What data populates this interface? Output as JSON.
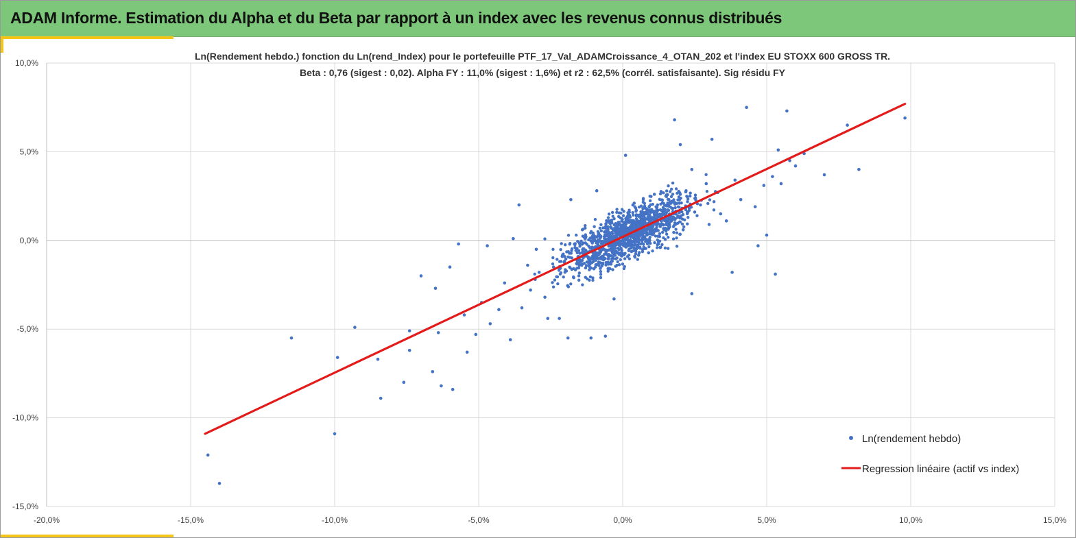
{
  "header": {
    "title": "ADAM Informe. Estimation du Alpha et du Beta par rapport à un index avec les revenus connus distribués",
    "background": "#7dc77a",
    "accent": "#f5c518"
  },
  "chart_data": {
    "type": "scatter",
    "title_line1": "Ln(Rendement hebdo.) fonction du Ln(rend_Index) pour le portefeuille PTF_17_Val_ADAMCroissance_4_OTAN_202 et l'index EU STOXX 600 GROSS TR.",
    "title_line2": "Beta : 0,76 (sigest : 0,02).  Alpha FY : 11,0% (sigest : 1,6%) et r2 : 62,5% (corrél. satisfaisante). Sig résidu FY",
    "xlabel": "",
    "ylabel": "",
    "xlim": [
      -20,
      15
    ],
    "ylim": [
      -15,
      10
    ],
    "x_ticks": [
      -20,
      -15,
      -10,
      -5,
      0,
      5,
      10,
      15
    ],
    "y_ticks": [
      -15,
      -10,
      -5,
      0,
      5,
      10
    ],
    "x_tick_labels": [
      "-20,0%",
      "-15,0%",
      "-10,0%",
      "-5,0%",
      "0,0%",
      "5,0%",
      "10,0%",
      "15,0%"
    ],
    "y_tick_labels": [
      "-15,0%",
      "-10,0%",
      "-5,0%",
      "0,0%",
      "5,0%",
      "10,0%"
    ],
    "grid": true,
    "legend_position": "bottom-right",
    "series": [
      {
        "name": "Ln(rendement hebdo)",
        "type": "scatter",
        "color": "#4472c4",
        "points": [
          [
            -14.4,
            -12.1
          ],
          [
            -14.0,
            -13.7
          ],
          [
            -11.5,
            -5.5
          ],
          [
            -10.0,
            -10.9
          ],
          [
            -9.9,
            -6.6
          ],
          [
            -9.3,
            -4.9
          ],
          [
            -8.5,
            -6.7
          ],
          [
            -8.4,
            -8.9
          ],
          [
            -7.6,
            -8.0
          ],
          [
            -7.4,
            -6.2
          ],
          [
            -7.4,
            -5.1
          ],
          [
            -7.0,
            -2.0
          ],
          [
            -6.6,
            -7.4
          ],
          [
            -6.5,
            -2.7
          ],
          [
            -6.4,
            -5.2
          ],
          [
            -6.3,
            -8.2
          ],
          [
            -6.0,
            -1.5
          ],
          [
            -5.9,
            -8.4
          ],
          [
            -5.7,
            -0.2
          ],
          [
            -5.5,
            -4.2
          ],
          [
            -5.4,
            -6.3
          ],
          [
            -5.1,
            -5.3
          ],
          [
            -4.7,
            -0.3
          ],
          [
            -4.6,
            -4.7
          ],
          [
            -4.3,
            -3.9
          ],
          [
            -3.9,
            -5.6
          ],
          [
            -3.8,
            0.1
          ],
          [
            -3.6,
            2.0
          ],
          [
            -3.5,
            -3.8
          ],
          [
            -3.3,
            -1.4
          ],
          [
            -3.0,
            -0.5
          ],
          [
            -2.7,
            -3.2
          ],
          [
            -2.6,
            -4.4
          ],
          [
            -2.2,
            -4.4
          ],
          [
            -1.9,
            -5.5
          ],
          [
            -1.8,
            2.3
          ],
          [
            -1.1,
            -5.5
          ],
          [
            -0.9,
            2.8
          ],
          [
            -0.6,
            -5.4
          ],
          [
            -0.3,
            -3.3
          ],
          [
            0.1,
            4.8
          ],
          [
            0.5,
            0.8
          ],
          [
            0.9,
            -0.7
          ],
          [
            1.5,
            2.5
          ],
          [
            1.8,
            6.8
          ],
          [
            2.0,
            5.4
          ],
          [
            2.4,
            4.0
          ],
          [
            2.4,
            -3.0
          ],
          [
            2.9,
            3.2
          ],
          [
            3.1,
            5.7
          ],
          [
            3.4,
            1.5
          ],
          [
            3.8,
            -1.8
          ],
          [
            3.9,
            3.4
          ],
          [
            4.1,
            2.3
          ],
          [
            4.3,
            7.5
          ],
          [
            4.6,
            1.9
          ],
          [
            4.7,
            -0.3
          ],
          [
            4.9,
            3.1
          ],
          [
            5.0,
            0.3
          ],
          [
            5.2,
            3.6
          ],
          [
            5.3,
            -1.9
          ],
          [
            5.4,
            5.1
          ],
          [
            5.5,
            3.2
          ],
          [
            5.7,
            7.3
          ],
          [
            5.8,
            4.5
          ],
          [
            6.0,
            4.2
          ],
          [
            6.3,
            4.9
          ],
          [
            7.0,
            3.7
          ],
          [
            7.8,
            6.5
          ],
          [
            8.2,
            4.0
          ],
          [
            9.8,
            6.9
          ],
          [
            -4.9,
            -3.5
          ],
          [
            -4.1,
            -2.4
          ],
          [
            -3.2,
            -2.8
          ],
          [
            -2.9,
            -1.8
          ],
          [
            -2.4,
            -1.5
          ],
          [
            -2.1,
            -0.9
          ],
          [
            -1.7,
            -2.1
          ],
          [
            -1.5,
            -1.2
          ],
          [
            -1.4,
            0.6
          ],
          [
            -1.2,
            -0.7
          ],
          [
            -1.0,
            -1.6
          ],
          [
            -0.8,
            0.3
          ],
          [
            -0.7,
            -0.4
          ],
          [
            -0.5,
            1.1
          ],
          [
            -0.4,
            -1.2
          ],
          [
            -0.2,
            0.7
          ],
          [
            -0.1,
            -0.3
          ],
          [
            0.0,
            0.4
          ],
          [
            0.2,
            1.5
          ],
          [
            0.3,
            -0.2
          ],
          [
            0.4,
            2.1
          ],
          [
            0.6,
            0.9
          ],
          [
            0.7,
            0.2
          ],
          [
            0.8,
            1.8
          ],
          [
            1.0,
            0.5
          ],
          [
            1.1,
            2.6
          ],
          [
            1.2,
            1.2
          ],
          [
            1.3,
            -0.4
          ],
          [
            1.4,
            1.7
          ],
          [
            1.6,
            0.8
          ],
          [
            1.7,
            2.2
          ],
          [
            1.9,
            1.3
          ],
          [
            2.1,
            0.6
          ],
          [
            2.2,
            2.8
          ],
          [
            2.5,
            1.6
          ],
          [
            2.7,
            2.0
          ],
          [
            3.0,
            0.9
          ],
          [
            3.3,
            2.7
          ],
          [
            3.6,
            1.1
          ]
        ]
      },
      {
        "name": "Regression linéaire (actif vs index)",
        "type": "line",
        "color": "#e31b1b",
        "points": [
          [
            -14.5,
            -10.9
          ],
          [
            9.8,
            7.7
          ]
        ]
      }
    ]
  }
}
